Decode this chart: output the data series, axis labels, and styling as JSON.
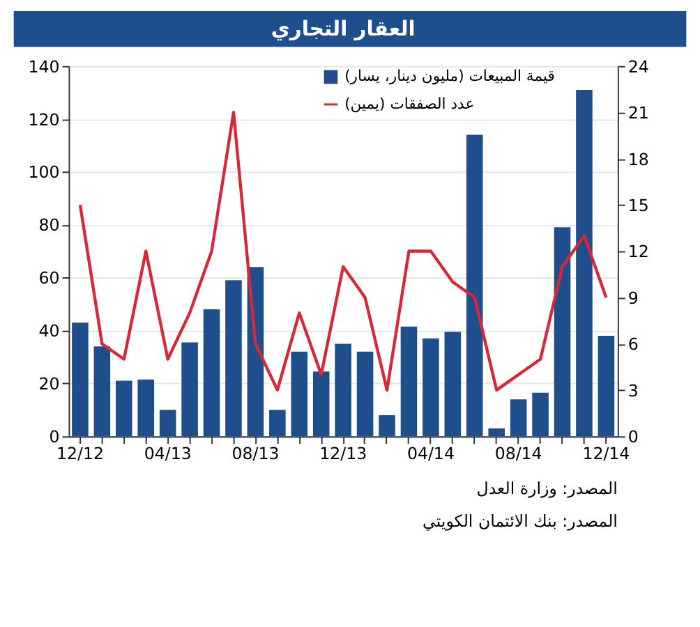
{
  "chart_data": {
    "type": "bar",
    "title": "العقار التجاري",
    "categories": [
      "12/12",
      null,
      null,
      null,
      "04/13",
      null,
      null,
      null,
      "08/13",
      null,
      null,
      null,
      "12/13",
      null,
      null,
      null,
      "04/14",
      null,
      null,
      null,
      "08/14",
      null,
      null,
      null,
      "12/14"
    ],
    "series": [
      {
        "name": "قيمة المبيعات (مليون دينار، يسار)",
        "color": "#1f4e8c",
        "values": [
          43,
          34,
          21,
          21.5,
          10,
          35.5,
          48,
          59,
          64,
          10,
          32,
          24.5,
          35,
          32,
          8,
          41.5,
          37,
          39.5,
          114,
          3,
          14,
          16.5,
          79,
          131,
          38
        ]
      },
      {
        "name": "عدد الصفقات (يمين)",
        "type": "line",
        "axis": "y2",
        "color": "#d62839",
        "values": [
          15,
          6,
          5,
          12,
          5,
          8,
          12,
          21,
          6,
          3,
          8,
          4,
          11,
          9,
          3,
          12,
          12,
          10,
          9,
          3,
          4,
          5,
          11,
          13,
          9
        ]
      }
    ],
    "ylim": [
      0,
      140
    ],
    "yticks": [
      0,
      20,
      40,
      60,
      80,
      100,
      120,
      140
    ],
    "y2lim": [
      0,
      24
    ],
    "y2ticks": [
      0,
      3,
      6,
      9,
      12,
      15,
      18,
      21,
      24
    ],
    "grid": "y",
    "legend": "top right",
    "annotations": [
      "المصدر: وزارة العدل",
      "المصدر: بنك الائتمان الكويتي"
    ]
  }
}
